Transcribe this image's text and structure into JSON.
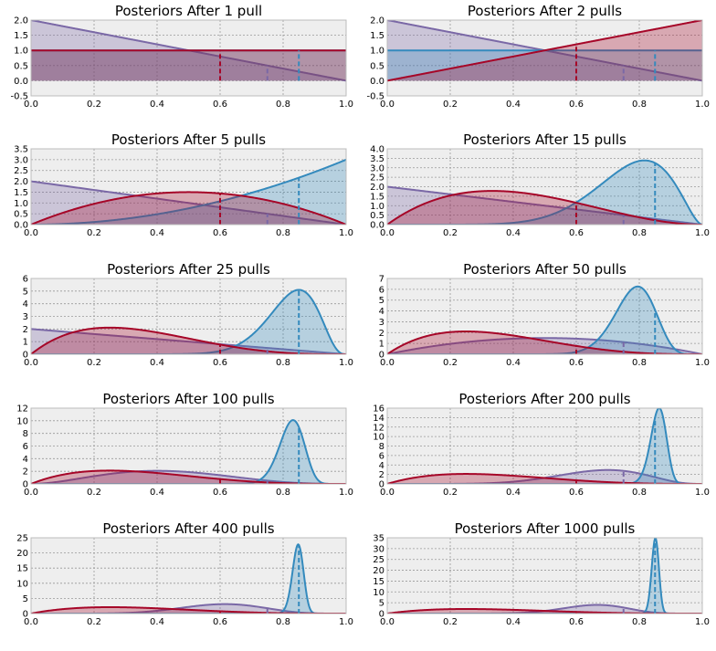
{
  "figure": {
    "type": "line",
    "x_range": [
      0,
      1
    ],
    "x_ticks": [
      0.0,
      0.2,
      0.4,
      0.6,
      0.8,
      1.0
    ],
    "grid": true,
    "legend": "none",
    "background": "#eeeeee",
    "colors": {
      "arm_a": "#7a68a6",
      "arm_b": "#a60628",
      "arm_c": "#348abd"
    },
    "true_probabilities": [
      {
        "arm": "arm_c",
        "value": 0.85
      },
      {
        "arm": "arm_b",
        "value": 0.6
      },
      {
        "arm": "arm_a",
        "value": 0.75
      }
    ]
  },
  "chart_data": [
    {
      "type": "line",
      "title": "Posteriors After 1 pull",
      "xlim": [
        0,
        1
      ],
      "ylim": [
        -0.5,
        2.0
      ],
      "yticks": [
        -0.5,
        0.0,
        0.5,
        1.0,
        1.5,
        2.0
      ],
      "x_true": [
        0.6,
        0.75,
        0.85
      ],
      "series": [
        {
          "arm": "arm_a",
          "alpha": 1,
          "beta": 2
        },
        {
          "arm": "arm_c",
          "alpha": 1,
          "beta": 1
        },
        {
          "arm": "arm_b",
          "alpha": 1,
          "beta": 1
        }
      ]
    },
    {
      "type": "line",
      "title": "Posteriors After 2 pulls",
      "xlim": [
        0,
        1
      ],
      "ylim": [
        -0.5,
        2.0
      ],
      "yticks": [
        -0.5,
        0.0,
        0.5,
        1.0,
        1.5,
        2.0
      ],
      "x_true": [
        0.6,
        0.75,
        0.85
      ],
      "series": [
        {
          "arm": "arm_a",
          "alpha": 1,
          "beta": 2
        },
        {
          "arm": "arm_c",
          "alpha": 1,
          "beta": 1
        },
        {
          "arm": "arm_b",
          "alpha": 2,
          "beta": 1
        }
      ]
    },
    {
      "type": "line",
      "title": "Posteriors After 5 pulls",
      "xlim": [
        0,
        1
      ],
      "ylim": [
        0,
        3.5
      ],
      "yticks": [
        0.0,
        0.5,
        1.0,
        1.5,
        2.0,
        2.5,
        3.0,
        3.5
      ],
      "x_true": [
        0.6,
        0.75,
        0.85
      ],
      "series": [
        {
          "arm": "arm_a",
          "alpha": 1,
          "beta": 2
        },
        {
          "arm": "arm_c",
          "alpha": 3,
          "beta": 1
        },
        {
          "arm": "arm_b",
          "alpha": 2,
          "beta": 2
        }
      ]
    },
    {
      "type": "line",
      "title": "Posteriors After 15 pulls",
      "xlim": [
        0,
        1
      ],
      "ylim": [
        0,
        4.0
      ],
      "yticks": [
        0.0,
        0.5,
        1.0,
        1.5,
        2.0,
        2.5,
        3.0,
        3.5,
        4.0
      ],
      "x_true": [
        0.6,
        0.75,
        0.85
      ],
      "series": [
        {
          "arm": "arm_a",
          "alpha": 1,
          "beta": 2
        },
        {
          "arm": "arm_c",
          "alpha": 9,
          "beta": 2.8
        },
        {
          "arm": "arm_b",
          "alpha": 2,
          "beta": 3
        }
      ]
    },
    {
      "type": "line",
      "title": "Posteriors After 25 pulls",
      "xlim": [
        0,
        1
      ],
      "ylim": [
        0,
        6
      ],
      "yticks": [
        0,
        1,
        2,
        3,
        4,
        5,
        6
      ],
      "x_true": [
        0.6,
        0.75,
        0.85
      ],
      "series": [
        {
          "arm": "arm_a",
          "alpha": 1,
          "beta": 2
        },
        {
          "arm": "arm_c",
          "alpha": 18,
          "beta": 4
        },
        {
          "arm": "arm_b",
          "alpha": 2,
          "beta": 4
        }
      ]
    },
    {
      "type": "line",
      "title": "Posteriors After 50 pulls",
      "xlim": [
        0,
        1
      ],
      "ylim": [
        0,
        7
      ],
      "yticks": [
        0,
        1,
        2,
        3,
        4,
        5,
        6,
        7
      ],
      "x_true": [
        0.6,
        0.75,
        0.85
      ],
      "series": [
        {
          "arm": "arm_a",
          "alpha": 2,
          "beta": 2
        },
        {
          "arm": "arm_c",
          "alpha": 32,
          "beta": 9
        },
        {
          "arm": "arm_b",
          "alpha": 2,
          "beta": 4
        }
      ]
    },
    {
      "type": "line",
      "title": "Posteriors After 100 pulls",
      "xlim": [
        0,
        1
      ],
      "ylim": [
        0,
        12
      ],
      "yticks": [
        0,
        2,
        4,
        6,
        8,
        10,
        12
      ],
      "x_true": [
        0.6,
        0.75,
        0.85
      ],
      "series": [
        {
          "arm": "arm_a",
          "alpha": 3,
          "beta": 4
        },
        {
          "arm": "arm_c",
          "alpha": 75,
          "beta": 16
        },
        {
          "arm": "arm_b",
          "alpha": 2,
          "beta": 4
        }
      ]
    },
    {
      "type": "line",
      "title": "Posteriors After 200 pulls",
      "xlim": [
        0,
        1
      ],
      "ylim": [
        0,
        16
      ],
      "yticks": [
        0,
        2,
        4,
        6,
        8,
        10,
        12,
        14,
        16
      ],
      "x_true": [
        0.6,
        0.75,
        0.85
      ],
      "series": [
        {
          "arm": "arm_a",
          "alpha": 8,
          "beta": 4
        },
        {
          "arm": "arm_c",
          "alpha": 165,
          "beta": 27
        },
        {
          "arm": "arm_b",
          "alpha": 2,
          "beta": 4
        }
      ]
    },
    {
      "type": "line",
      "title": "Posteriors After 400 pulls",
      "xlim": [
        0,
        1
      ],
      "ylim": [
        0,
        25
      ],
      "yticks": [
        0,
        5,
        10,
        15,
        20,
        25
      ],
      "x_true": [
        0.6,
        0.75,
        0.85
      ],
      "series": [
        {
          "arm": "arm_a",
          "alpha": 9,
          "beta": 6
        },
        {
          "arm": "arm_c",
          "alpha": 358,
          "beta": 65
        },
        {
          "arm": "arm_b",
          "alpha": 2,
          "beta": 4
        }
      ]
    },
    {
      "type": "line",
      "title": "Posteriors After 1000 pulls",
      "xlim": [
        0,
        1
      ],
      "ylim": [
        0,
        35
      ],
      "yticks": [
        0,
        5,
        10,
        15,
        20,
        25,
        30,
        35
      ],
      "x_true": [
        0.6,
        0.75,
        0.85
      ],
      "series": [
        {
          "arm": "arm_a",
          "alpha": 15,
          "beta": 8
        },
        {
          "arm": "arm_c",
          "alpha": 830,
          "beta": 146
        },
        {
          "arm": "arm_b",
          "alpha": 2,
          "beta": 4
        }
      ]
    }
  ]
}
